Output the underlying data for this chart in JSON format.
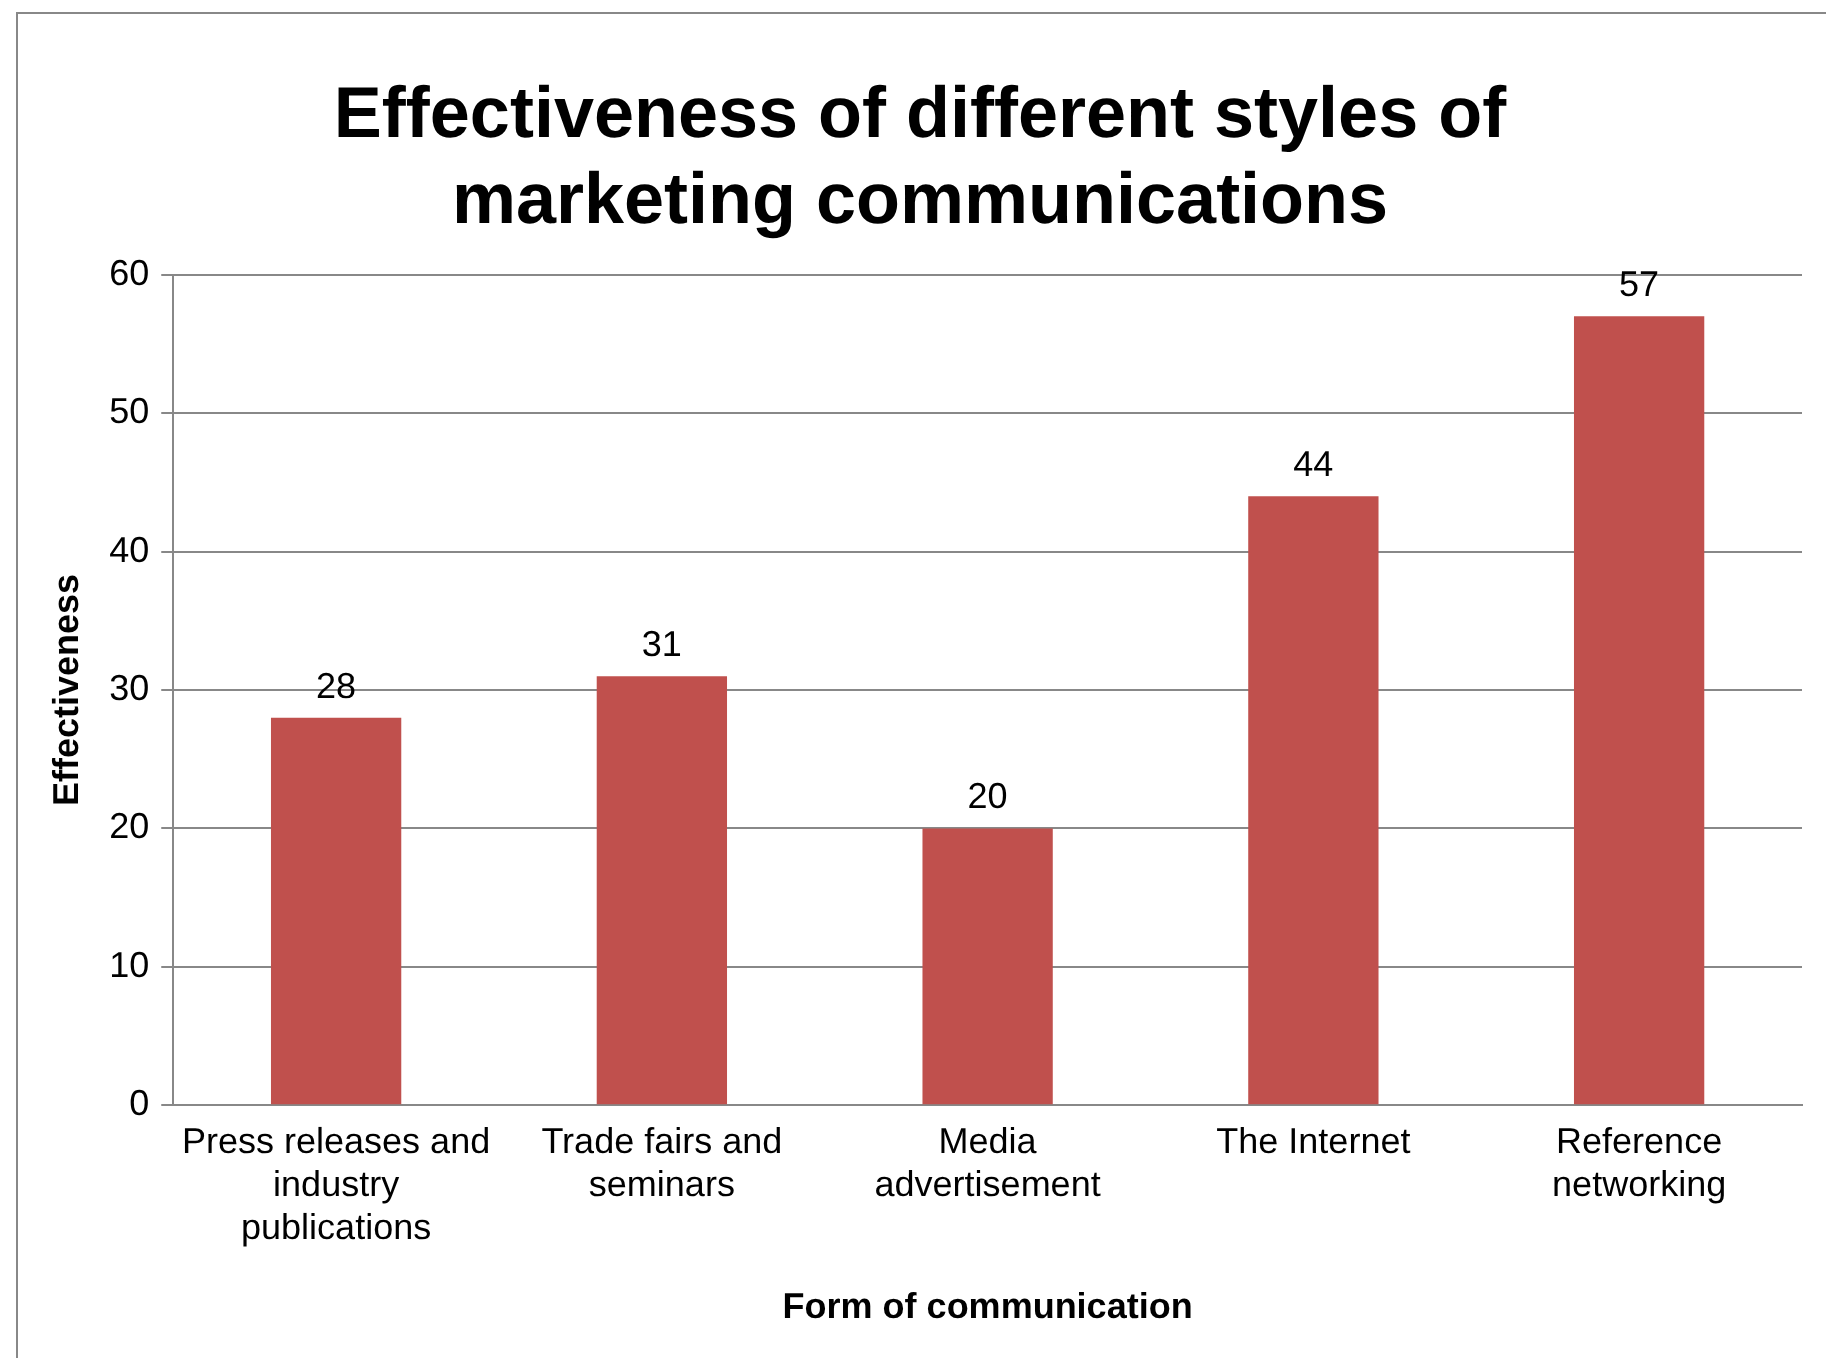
{
  "chart_data": {
    "type": "bar",
    "title": "Effectiveness of different styles of marketing communications",
    "xlabel": "Form of communication",
    "ylabel": "Effectiveness",
    "categories": [
      "Press releases and industry publications",
      "Trade fairs and seminars",
      "Media advertisement",
      "The Internet",
      "Reference networking"
    ],
    "values": [
      28,
      31,
      20,
      44,
      57
    ],
    "color": "#c0504d",
    "ylim": [
      0,
      60
    ],
    "yticks": [
      0,
      10,
      20,
      30,
      40,
      50,
      60
    ],
    "grid": "y",
    "data_labels": true,
    "legend": false
  }
}
